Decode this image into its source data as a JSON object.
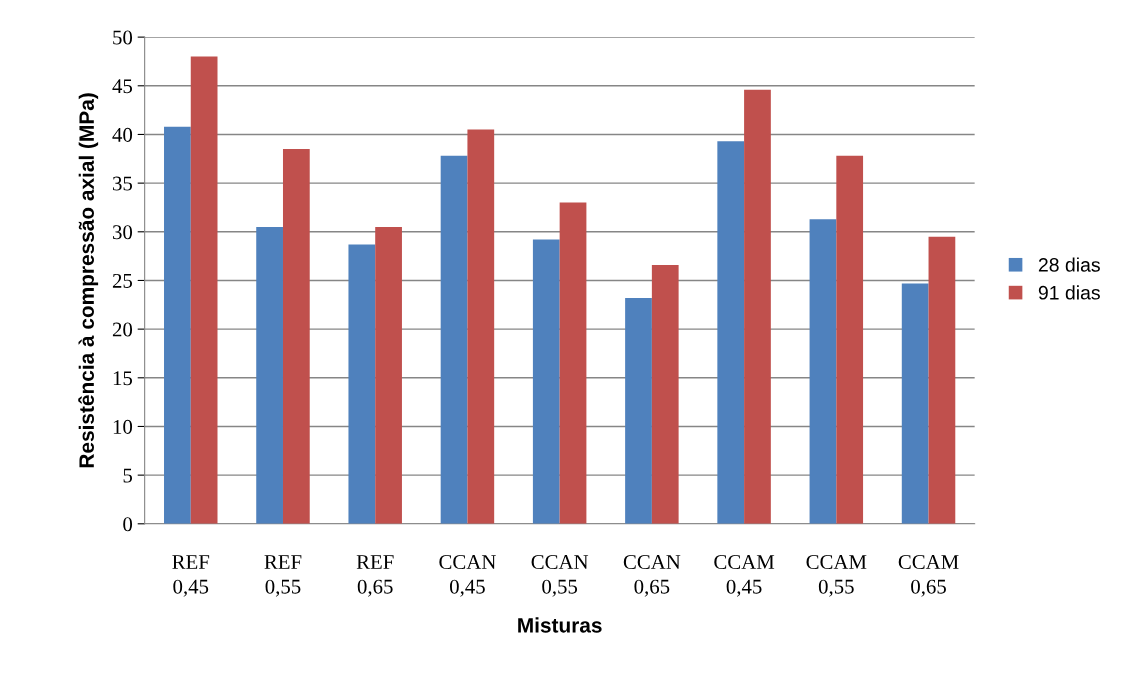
{
  "chart_data": {
    "type": "bar",
    "xlabel": "Misturas",
    "ylabel": "Resistência à compressão axial (MPa)",
    "categories": [
      "REF\n0,45",
      "REF\n0,55",
      "REF\n0,65",
      "CCAN\n0,45",
      "CCAN\n0,55",
      "CCAN\n0,65",
      "CCAM\n0,45",
      "CCAM\n0,55",
      "CCAM\n0,65"
    ],
    "series": [
      {
        "name": "28 dias",
        "color": "#4f81bd",
        "values": [
          40.8,
          30.5,
          28.7,
          37.8,
          29.2,
          23.2,
          39.3,
          31.3,
          24.7
        ]
      },
      {
        "name": "91 dias",
        "color": "#c0504d",
        "values": [
          48.0,
          38.5,
          30.5,
          40.5,
          33.0,
          26.6,
          44.6,
          37.8,
          29.5
        ]
      }
    ],
    "ylim": [
      0,
      50
    ],
    "yticks": [
      0,
      5,
      10,
      15,
      20,
      25,
      30,
      35,
      40,
      45,
      50
    ],
    "grid": "y",
    "legend": "right"
  }
}
